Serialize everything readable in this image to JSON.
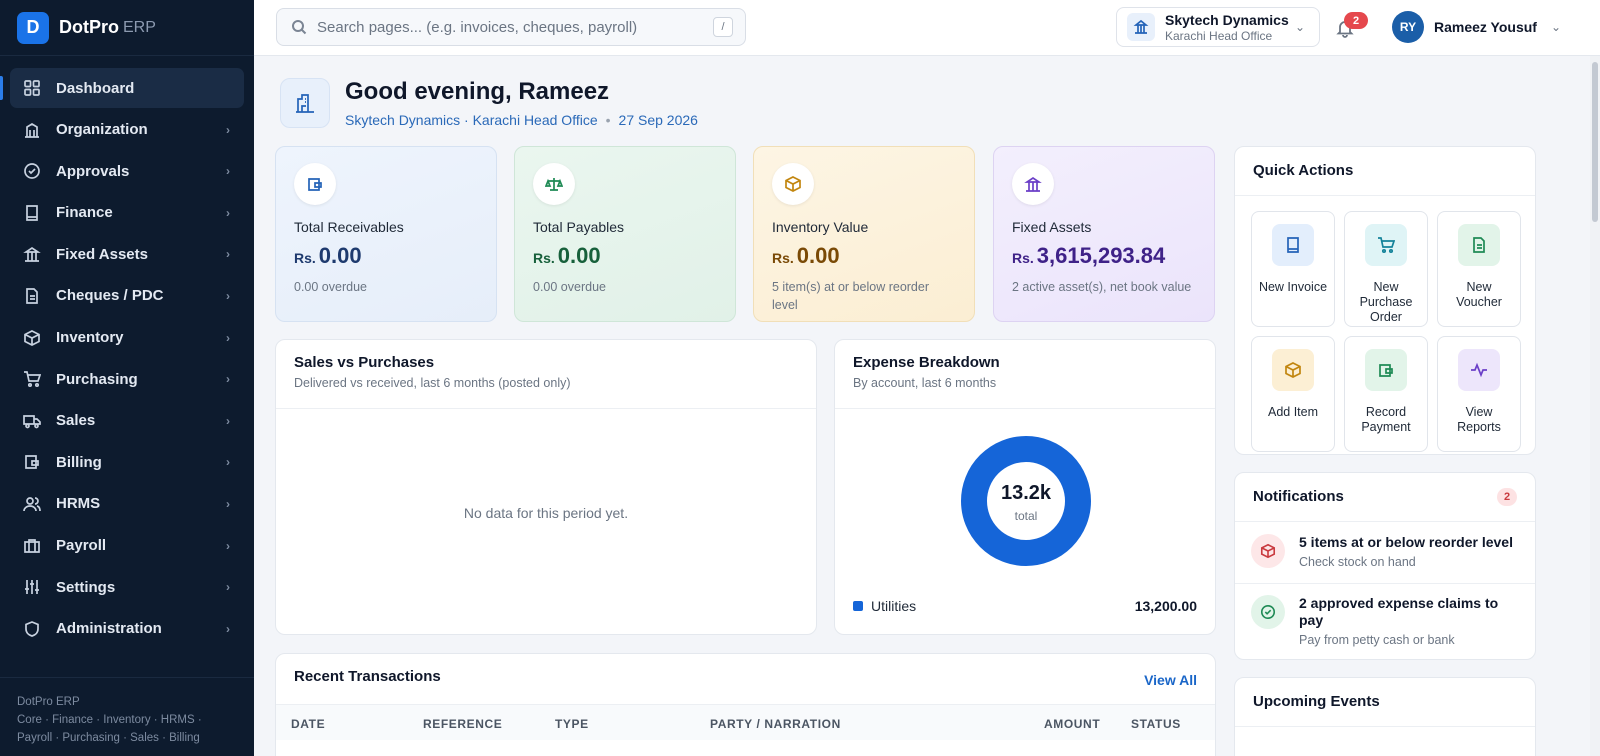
{
  "brand": {
    "logo_letter": "D",
    "name": "DotPro",
    "suffix": "ERP"
  },
  "sidebar": {
    "items": [
      {
        "label": "Dashboard",
        "icon": "grid-icon",
        "active": true
      },
      {
        "label": "Organization",
        "icon": "building-icon"
      },
      {
        "label": "Approvals",
        "icon": "check-circle-icon"
      },
      {
        "label": "Finance",
        "icon": "book-icon"
      },
      {
        "label": "Fixed Assets",
        "icon": "bank-icon"
      },
      {
        "label": "Cheques / PDC",
        "icon": "document-icon"
      },
      {
        "label": "Inventory",
        "icon": "box-icon"
      },
      {
        "label": "Purchasing",
        "icon": "cart-icon"
      },
      {
        "label": "Sales",
        "icon": "truck-icon"
      },
      {
        "label": "Billing",
        "icon": "wallet-icon"
      },
      {
        "label": "HRMS",
        "icon": "users-icon"
      },
      {
        "label": "Payroll",
        "icon": "briefcase-icon"
      },
      {
        "label": "Settings",
        "icon": "sliders-icon"
      },
      {
        "label": "Administration",
        "icon": "shield-icon"
      }
    ],
    "footer_title": "DotPro ERP",
    "footer_line1": "Core · Finance · Inventory · HRMS ·",
    "footer_line2": "Payroll · Purchasing · Sales · Billing"
  },
  "topbar": {
    "search_placeholder": "Search pages... (e.g. invoices, cheques, payroll)",
    "search_shortcut": "/",
    "org_name": "Skytech Dynamics",
    "org_branch": "Karachi Head Office",
    "notification_count": "2",
    "user_initials": "RY",
    "user_name": "Rameez Yousuf"
  },
  "hero": {
    "greeting": "Good evening, Rameez",
    "context": "Skytech Dynamics · Karachi Head Office",
    "date": "27 Sep 2026"
  },
  "stats": [
    {
      "label": "Total Receivables",
      "currency": "Rs.",
      "value": "0.00",
      "note": "0.00 overdue"
    },
    {
      "label": "Total Payables",
      "currency": "Rs.",
      "value": "0.00",
      "note": "0.00 overdue"
    },
    {
      "label": "Inventory Value",
      "currency": "Rs.",
      "value": "0.00",
      "note": "5 item(s) at or below reorder level"
    },
    {
      "label": "Fixed Assets",
      "currency": "Rs.",
      "value": "3,615,293.84",
      "note": "2 active asset(s), net book value"
    }
  ],
  "sales_vs_purchases": {
    "title": "Sales vs Purchases",
    "subtitle": "Delivered vs received, last 6 months (posted only)",
    "empty_text": "No data for this period yet."
  },
  "expense_breakdown": {
    "title": "Expense Breakdown",
    "subtitle": "By account, last 6 months",
    "total_label": "13.2k",
    "total_caption": "total",
    "legend_label": "Utilities",
    "legend_value": "13,200.00"
  },
  "chart_data": {
    "type": "pie",
    "categories": [
      "Utilities"
    ],
    "values": [
      13200
    ],
    "title": "Expense Breakdown",
    "colors": [
      "#1565d8"
    ]
  },
  "quick_actions": {
    "title": "Quick Actions",
    "items": [
      {
        "label": "New Invoice"
      },
      {
        "label": "New Purchase Order"
      },
      {
        "label": "New Voucher"
      },
      {
        "label": "Add Item"
      },
      {
        "label": "Record Payment"
      },
      {
        "label": "View Reports"
      }
    ]
  },
  "notifications": {
    "title": "Notifications",
    "count": "2",
    "items": [
      {
        "title": "5 items at or below reorder level",
        "sub": "Check stock on hand"
      },
      {
        "title": "2 approved expense claims to pay",
        "sub": "Pay from petty cash or bank"
      }
    ]
  },
  "upcoming": {
    "title": "Upcoming Events"
  },
  "recent": {
    "title": "Recent Transactions",
    "view_all": "View All",
    "columns": [
      "DATE",
      "REFERENCE",
      "TYPE",
      "PARTY / NARRATION",
      "AMOUNT",
      "STATUS"
    ]
  }
}
